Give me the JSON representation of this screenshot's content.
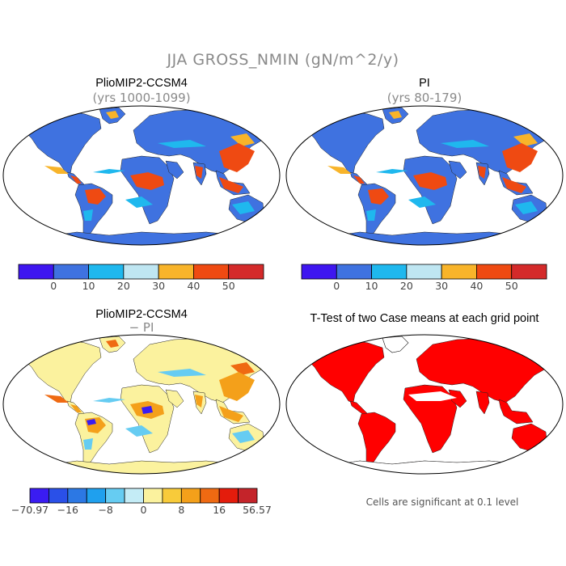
{
  "figure": {
    "title": "JJA GROSS_NMIN (gN/m^2/y)"
  },
  "panels": [
    {
      "title": "PlioMIP2-CCSM4",
      "subtitle": "(yrs 1000-1099)",
      "palette": "main"
    },
    {
      "title": "PI",
      "subtitle": "(yrs 80-179)",
      "palette": "main"
    },
    {
      "title": "PlioMIP2-CCSM4",
      "subtitle": "− PI",
      "palette": "diff"
    },
    {
      "title": "T-Test of two Case means at each grid point",
      "subtitle": "",
      "palette": "sig"
    }
  ],
  "colorbars": {
    "main": {
      "colors": [
        "#3e16f0",
        "#3f72e0",
        "#1fb8ee",
        "#bfe6f2",
        "#f8b42a",
        "#ef4a12",
        "#d42a2a"
      ],
      "ticks": [
        "0",
        "10",
        "20",
        "30",
        "40",
        "50"
      ]
    },
    "diff": {
      "colors": [
        "#3a1cf2",
        "#2a50e8",
        "#2c78e4",
        "#1fa0ee",
        "#66ccf2",
        "#c4ecf6",
        "#fbf29e",
        "#f8cb3a",
        "#f4a01a",
        "#ef6a12",
        "#e41c0c",
        "#c4242a"
      ],
      "ticks": [
        "−70.97",
        "−16",
        "−8",
        "0",
        "8",
        "16",
        "56.57"
      ]
    }
  },
  "significance": {
    "note": "Cells are significant at 0.1 level",
    "color": "#ff0000"
  }
}
